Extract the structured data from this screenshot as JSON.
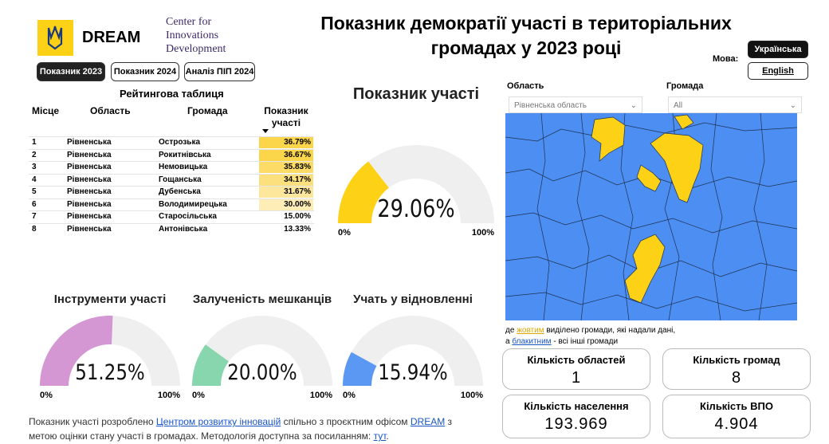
{
  "header": {
    "logo_text": "DREAM",
    "partner": [
      "Center for",
      "Innovations",
      "Development"
    ],
    "title": "Показник демократії участі в територіальних громадах у 2023 році"
  },
  "tabs": [
    "Показник 2023",
    "Показник 2024",
    "Аналіз ПІП 2024"
  ],
  "language": {
    "label": "Мова:",
    "options": [
      "Українська",
      "English"
    ]
  },
  "table": {
    "title": "Рейтингова таблиця",
    "columns": [
      "Місце",
      "Область",
      "Громада",
      "Показник участі"
    ],
    "rows": [
      {
        "place": "1",
        "oblast": "Рівненська",
        "hromada": "Острозька",
        "value": "36.79%",
        "color": "#fbd54a"
      },
      {
        "place": "2",
        "oblast": "Рівненська",
        "hromada": "Рокитнівська",
        "value": "36.67%",
        "color": "#fbd54a"
      },
      {
        "place": "3",
        "oblast": "Рівненська",
        "hromada": "Немовицька",
        "value": "35.83%",
        "color": "#fcdb66"
      },
      {
        "place": "4",
        "oblast": "Рівненська",
        "hromada": "Гощанська",
        "value": "34.17%",
        "color": "#fce07e"
      },
      {
        "place": "5",
        "oblast": "Рівненська",
        "hromada": "Дубенська",
        "value": "31.67%",
        "color": "#fde79d"
      },
      {
        "place": "6",
        "oblast": "Рівненська",
        "hromada": "Володимирецька",
        "value": "30.00%",
        "color": "#feedb6"
      },
      {
        "place": "7",
        "oblast": "Рівненська",
        "hromada": "Старосільська",
        "value": "15.00%",
        "color": "#ffffff"
      },
      {
        "place": "8",
        "oblast": "Рівненська",
        "hromada": "Антонівська",
        "value": "13.33%",
        "color": "#ffffff"
      }
    ]
  },
  "gauges": [
    {
      "title": "Показник участі",
      "value": 29.06,
      "value_label": "29.06%",
      "color": "#fcd116",
      "range": [
        {
          "value": 0,
          "label": "0%"
        },
        {
          "value": 100,
          "label": "100%"
        }
      ]
    },
    {
      "title": "Інструменти участі",
      "value": 51.25,
      "value_label": "51.25%",
      "color": "#d597d4",
      "range": [
        {
          "value": 0,
          "label": "0%"
        },
        {
          "value": 100,
          "label": "100%"
        }
      ]
    },
    {
      "title": "Залученість мешканців",
      "value": 20.0,
      "value_label": "20.00%",
      "color": "#88d6ad",
      "range": [
        {
          "value": 0,
          "label": "0%"
        },
        {
          "value": 100,
          "label": "100%"
        }
      ]
    },
    {
      "title": "Учать у відновленні",
      "value": 15.94,
      "value_label": "15.94%",
      "color": "#5b98f3",
      "range": [
        {
          "value": 0,
          "label": "0%"
        },
        {
          "value": 100,
          "label": "100%"
        }
      ]
    }
  ],
  "filters": [
    {
      "label": "Область",
      "value": "Рівненська область"
    },
    {
      "label": "Громада",
      "value": "All"
    }
  ],
  "map_legend": [
    "де ",
    "жовтим",
    " виділено громади, які надали дані,",
    "а ",
    "блакитним",
    " - всі інші громади"
  ],
  "stats": [
    {
      "label": "Кількість областей",
      "value": "1"
    },
    {
      "label": "Кількість громад",
      "value": "8"
    },
    {
      "label": "Кількість населення",
      "value": "193.969"
    },
    {
      "label": "Кількість ВПО",
      "value": "4.904"
    }
  ],
  "footer": [
    "Показник участі розроблено ",
    "Центром розвитку інновацій",
    " спільно з проєктним офісом ",
    "DREAM",
    " з",
    "метою оцінки стану участі в громадах. Методологія доступна за посиланням: ",
    "тут",
    "."
  ]
}
